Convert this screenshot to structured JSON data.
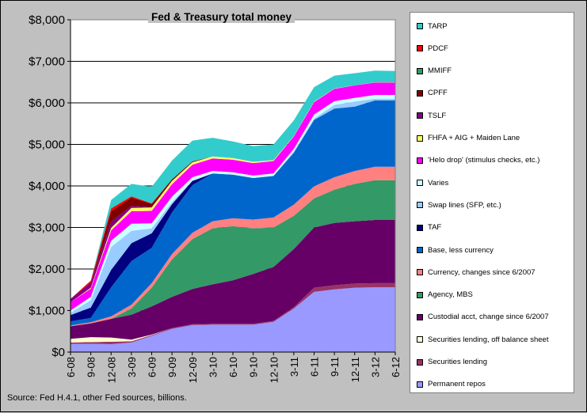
{
  "chart_data": {
    "type": "area",
    "title": "Fed & Treasury total money",
    "note": "Source: Fed H.4.1, other Fed sources, billions.",
    "ylim": [
      0,
      8000
    ],
    "y_ticks": [
      "$0",
      "$1,000",
      "$2,000",
      "$3,000",
      "$4,000",
      "$5,000",
      "$6,000",
      "$7,000",
      "$8,000"
    ],
    "x_ticks": [
      "6-08",
      "9-08",
      "12-08",
      "3-09",
      "6-09",
      "9-09",
      "12-09",
      "3-10",
      "6-10",
      "9-10",
      "12-10",
      "3-11",
      "6-11",
      "9-11",
      "12-11",
      "3-12",
      "6-12"
    ],
    "grid": true,
    "legend_position": "right",
    "series": [
      {
        "name": "Permanent repos",
        "color": "#9999ff",
        "values": [
          200,
          200,
          190,
          230,
          390,
          560,
          650,
          660,
          660,
          660,
          730,
          1050,
          1450,
          1510,
          1550,
          1560,
          1560
        ]
      },
      {
        "name": "Securities lending",
        "color": "#993366",
        "values": [
          30,
          40,
          60,
          30,
          20,
          20,
          20,
          20,
          20,
          20,
          20,
          30,
          100,
          100,
          100,
          100,
          100
        ]
      },
      {
        "name": "Securities lending, off balance sheet",
        "color": "#ffffcc",
        "values": [
          90,
          120,
          100,
          40,
          10,
          0,
          0,
          0,
          0,
          0,
          0,
          0,
          0,
          0,
          0,
          0,
          0
        ]
      },
      {
        "name": "Custodial acct, change since 6/2007",
        "color": "#660066",
        "values": [
          300,
          330,
          450,
          600,
          680,
          750,
          850,
          950,
          1050,
          1200,
          1300,
          1400,
          1450,
          1500,
          1500,
          1520,
          1520
        ]
      },
      {
        "name": "Agency, MBS",
        "color": "#339966",
        "values": [
          0,
          0,
          0,
          150,
          450,
          900,
          1200,
          1350,
          1300,
          1100,
          950,
          800,
          700,
          800,
          900,
          960,
          960
        ]
      },
      {
        "name": "Currency, changes since 6/2007",
        "color": "#ff8080",
        "values": [
          20,
          30,
          60,
          90,
          110,
          130,
          150,
          170,
          190,
          210,
          240,
          270,
          290,
          300,
          310,
          320,
          320
        ]
      },
      {
        "name": "Base, less currency",
        "color": "#0066cc",
        "values": [
          100,
          100,
          700,
          1050,
          850,
          1000,
          1150,
          1150,
          1050,
          1000,
          1000,
          1250,
          1600,
          1650,
          1550,
          1600,
          1600
        ]
      },
      {
        "name": "TAF",
        "color": "#000080",
        "values": [
          150,
          250,
          420,
          430,
          350,
          200,
          100,
          0,
          0,
          0,
          0,
          0,
          0,
          0,
          0,
          0,
          0
        ]
      },
      {
        "name": "Swap lines (SFP, etc.)",
        "color": "#99ccff",
        "values": [
          50,
          180,
          550,
          300,
          120,
          50,
          10,
          0,
          0,
          0,
          0,
          30,
          30,
          90,
          120,
          40,
          40
        ]
      },
      {
        "name": "Varies",
        "color": "#ccffff",
        "values": [
          60,
          80,
          150,
          170,
          120,
          130,
          80,
          60,
          60,
          60,
          60,
          60,
          100,
          90,
          90,
          90,
          90
        ]
      },
      {
        "name": "'Helo drop' (stimulus checks, etc.)",
        "color": "#ff00ff",
        "values": [
          200,
          200,
          250,
          300,
          300,
          300,
          300,
          300,
          300,
          300,
          300,
          300,
          300,
          300,
          300,
          300,
          300
        ]
      },
      {
        "name": "FHFA + AIG + Maiden Lane",
        "color": "#ffff66",
        "values": [
          0,
          20,
          60,
          80,
          80,
          80,
          60,
          50,
          40,
          30,
          20,
          10,
          10,
          5,
          5,
          5,
          5
        ]
      },
      {
        "name": "TSLF",
        "color": "#800080",
        "values": [
          80,
          120,
          150,
          50,
          10,
          0,
          0,
          0,
          0,
          0,
          0,
          0,
          0,
          0,
          0,
          0,
          0
        ]
      },
      {
        "name": "CPFF",
        "color": "#800000",
        "values": [
          0,
          0,
          250,
          200,
          80,
          40,
          20,
          0,
          0,
          0,
          0,
          0,
          0,
          0,
          0,
          0,
          0
        ]
      },
      {
        "name": "MMIFF",
        "color": "#339966",
        "values": [
          0,
          0,
          0,
          0,
          0,
          0,
          0,
          0,
          0,
          0,
          0,
          0,
          0,
          0,
          0,
          0,
          0
        ]
      },
      {
        "name": "PDCF",
        "color": "#ff0000",
        "values": [
          0,
          50,
          70,
          30,
          10,
          0,
          0,
          0,
          0,
          0,
          0,
          0,
          0,
          0,
          0,
          0,
          0
        ]
      },
      {
        "name": "TARP",
        "color": "#33cccc",
        "values": [
          0,
          0,
          200,
          300,
          400,
          450,
          500,
          450,
          400,
          380,
          380,
          380,
          350,
          310,
          290,
          280,
          270
        ]
      }
    ]
  }
}
